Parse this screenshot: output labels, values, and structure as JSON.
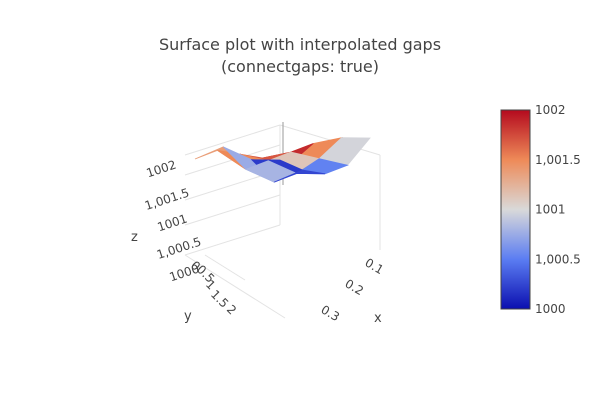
{
  "chart_data": {
    "type": "surface",
    "title_lines": [
      "Surface plot with interpolated gaps",
      "(connectgaps: true)"
    ],
    "scene": {
      "xaxis": {
        "title": "x",
        "ticks": [
          "0.1",
          "0.2",
          "0.3"
        ]
      },
      "yaxis": {
        "title": "y",
        "ticks": [
          "0",
          "0.5",
          "1",
          "1.5",
          "2"
        ]
      },
      "zaxis": {
        "title": "z",
        "range": [
          1000,
          1002
        ],
        "ticks": [
          "1000",
          "1,000.5",
          "1001",
          "1,001.5",
          "1002"
        ]
      }
    },
    "colorscale": [
      "#0b0fb0",
      "#5b7df2",
      "#d9d9d9",
      "#ee8a58",
      "#b40a1e"
    ],
    "colorbar": {
      "range": [
        1000,
        1002
      ],
      "ticks": [
        "1000",
        "1,000.5",
        "1001",
        "1,001.5",
        "1002"
      ]
    },
    "surface_z_grid": [
      [
        1001.5,
        1001.2,
        1000.5,
        1000.0
      ],
      [
        1001.8,
        1001.0,
        1000.3,
        1000.0
      ],
      [
        1001.9,
        1001.3,
        1000.6,
        1000.1
      ],
      [
        1002.0,
        1001.6,
        1001.0,
        1000.4
      ],
      [
        1002.0,
        1001.9,
        1001.5,
        1001.0
      ]
    ]
  }
}
